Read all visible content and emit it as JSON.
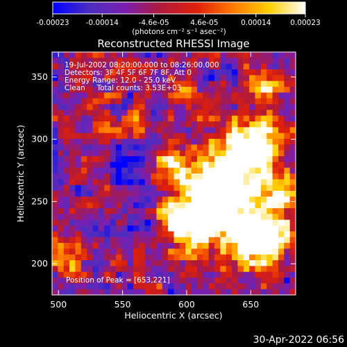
{
  "chart_data": {
    "type": "heatmap",
    "title": "Reconstructed RHESSI Image",
    "xlabel": "Heliocentric X (arcsec)",
    "ylabel": "Heliocentric Y (arcsec)",
    "xlim": [
      495,
      685
    ],
    "ylim": [
      175,
      370
    ],
    "x_ticks": [
      500,
      550,
      600,
      650
    ],
    "y_ticks": [
      200,
      250,
      300,
      350
    ],
    "colorbar": {
      "ticks": [
        "-0.00023",
        "-0.00014",
        "-4.6e-05",
        "4.6e-05",
        "0.00014",
        "0.00023"
      ],
      "tick_values": [
        -0.00023,
        -0.00014,
        -4.6e-05,
        4.6e-05,
        0.00014,
        0.00023
      ],
      "range": [
        -0.00023,
        0.00023
      ],
      "units": "(photons cm⁻² s⁻¹ asec⁻²)",
      "stops": [
        "#0000ff",
        "#4b2dbf",
        "#7a1fb0",
        "#b01a3a",
        "#e0200a",
        "#ff7a00",
        "#ffd000",
        "#ffffff"
      ]
    },
    "annotations": [
      "19-Jul-2002 08:20:00.000 to 08:26:00.000",
      "Detectors: 3F 4F 5F 6F 7F 8F, Att 0",
      "Energy Range: 12.0 - 25.0 keV",
      "Clean     Total counts: 3.53E+03"
    ],
    "peak_label": "Position of Peak = [653,221]",
    "peak": [
      653,
      221
    ]
  },
  "footer": {
    "date": "30-Apr-2022 06:56"
  }
}
